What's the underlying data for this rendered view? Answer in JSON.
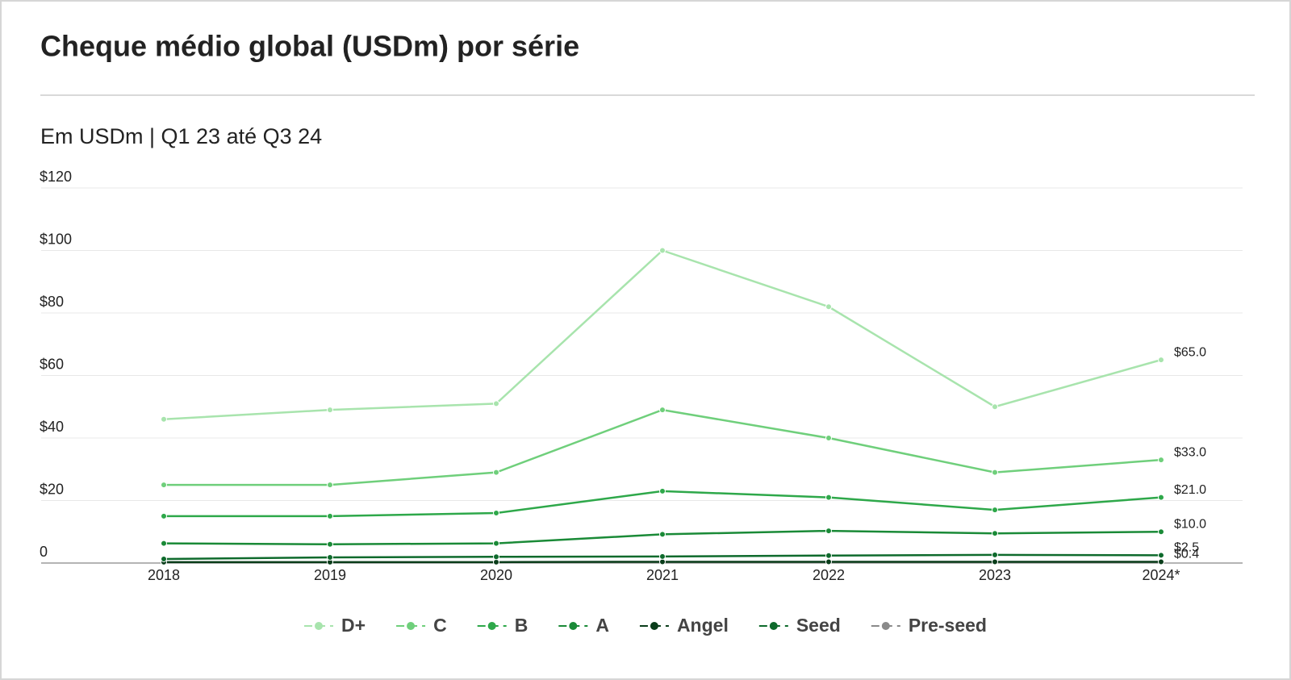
{
  "chart_data": {
    "type": "line",
    "title": "Cheque médio global (USDm) por série",
    "subtitle": "Em USDm | Q1 23 até Q3 24",
    "categories": [
      "2018",
      "2019",
      "2020",
      "2021",
      "2022",
      "2023",
      "2024*"
    ],
    "ylim": [
      0,
      120
    ],
    "yticks": [
      0,
      {
        "value": 20,
        "label": "$20"
      },
      {
        "value": 40,
        "label": "$40"
      },
      {
        "value": 60,
        "label": "$60"
      },
      {
        "value": 80,
        "label": "$80"
      },
      {
        "value": 100,
        "label": "$100"
      },
      {
        "value": 120,
        "label": "$120"
      }
    ],
    "grid": true,
    "legend": "bottom",
    "series": [
      {
        "name": "D+",
        "color": "#a8e4ad",
        "values": [
          46,
          49,
          51,
          100,
          82,
          50,
          65
        ],
        "value_labels": [
          null,
          null,
          null,
          null,
          null,
          null,
          "$65.0"
        ]
      },
      {
        "name": "C",
        "color": "#6fcf7b",
        "values": [
          25,
          25,
          29,
          49,
          40,
          29,
          33
        ],
        "value_labels": [
          null,
          null,
          null,
          null,
          null,
          null,
          "$33.0"
        ]
      },
      {
        "name": "B",
        "color": "#2ea84a",
        "values": [
          15,
          15,
          16,
          23,
          21,
          17,
          21
        ],
        "value_labels": [
          null,
          null,
          null,
          null,
          null,
          null,
          "$21.0"
        ]
      },
      {
        "name": "A",
        "color": "#1a8a37",
        "values": [
          6.3,
          6,
          6.3,
          9.2,
          10.3,
          9.5,
          10
        ],
        "value_labels": [
          null,
          null,
          null,
          null,
          null,
          null,
          "$10.0"
        ]
      },
      {
        "name": "Angel",
        "color": "#0a3d1a",
        "values": [
          0.3,
          0.3,
          0.3,
          0.4,
          0.4,
          0.4,
          0.4
        ],
        "value_labels": [
          null,
          null,
          null,
          null,
          null,
          null,
          "$0.4"
        ]
      },
      {
        "name": "Seed",
        "color": "#0e6a2c",
        "values": [
          1.3,
          1.8,
          2,
          2.1,
          2.4,
          2.6,
          2.5
        ],
        "value_labels": [
          null,
          null,
          null,
          null,
          null,
          null,
          "$2.5"
        ]
      },
      {
        "name": "Pre-seed",
        "color": "#8a8a8a",
        "values": [
          null,
          null,
          null,
          null,
          null,
          null,
          null
        ]
      }
    ]
  }
}
